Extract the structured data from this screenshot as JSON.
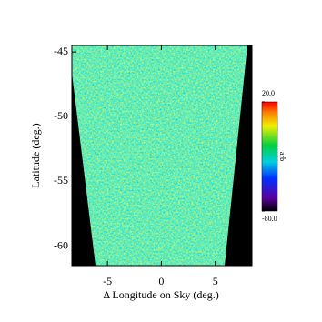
{
  "chart_data": {
    "type": "map",
    "xlabel": "Δ Longitude on Sky (deg.)",
    "ylabel": "Latitude (deg.)",
    "xlim": [
      -8.3,
      8.4
    ],
    "ylim": [
      -61.5,
      -44.5
    ],
    "xticks": [
      -5,
      0,
      5
    ],
    "yticks": [
      -45,
      -50,
      -55,
      -60
    ],
    "colorbar": {
      "label": "arb",
      "lim": [
        -80,
        20
      ],
      "ticks": [
        {
          "value": 20,
          "label": "20.0"
        },
        {
          "value": -80,
          "label": "-80.0"
        }
      ]
    }
  }
}
